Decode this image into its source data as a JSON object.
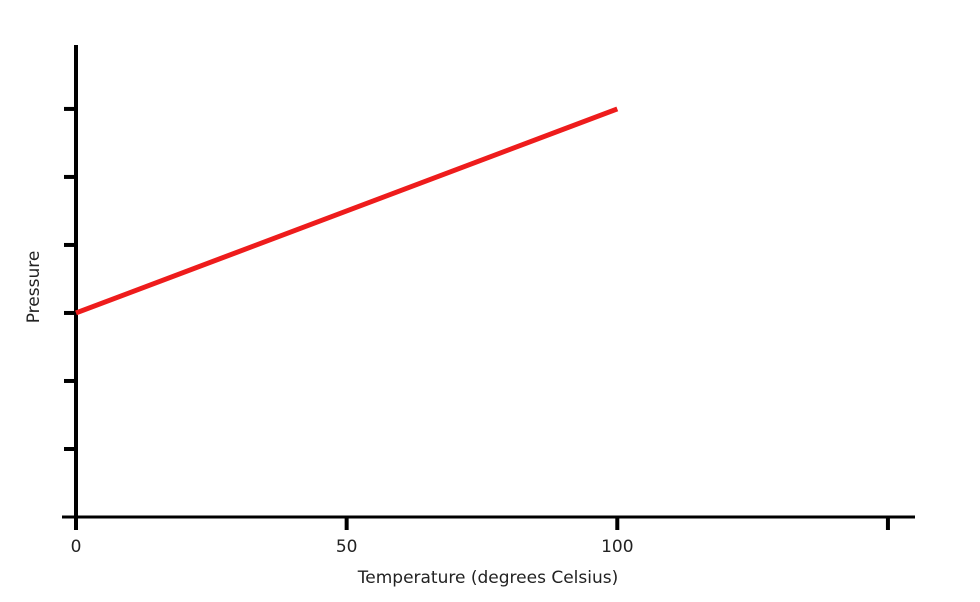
{
  "chart_data": {
    "type": "line",
    "x_label": "Temperature (degrees Celsius)",
    "y_label": "Pressure",
    "x": [
      0,
      100
    ],
    "series": [
      {
        "color": "#ee1c1c",
        "values": [
          3,
          6
        ]
      }
    ],
    "xlim": [
      0,
      155
    ],
    "xticks": [
      0,
      50,
      100
    ],
    "extra_xticks": [
      150
    ],
    "ylim": [
      0,
      6.94
    ],
    "yticks": [
      1,
      2,
      3,
      4,
      5,
      6
    ],
    "ytick_labels": false,
    "grid": false
  }
}
